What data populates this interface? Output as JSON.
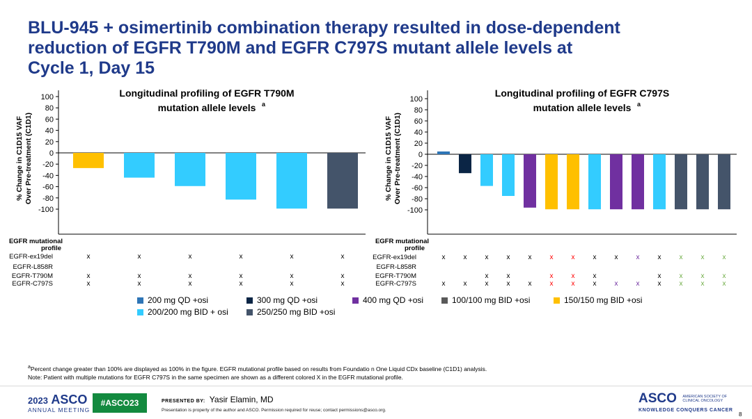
{
  "title_lines": [
    "BLU-945 + osimertinib combination therapy resulted in dose-dependent",
    "reduction of EGFR T790M and EGFR C797S mutant allele levels at",
    "Cycle 1, Day 15"
  ],
  "colors": {
    "title": "#1f3a8a",
    "d200qd": "#2e75b6",
    "d300qd": "#0b2545",
    "d400qd": "#7030a0",
    "d100bid": "#595959",
    "d150bid": "#ffc000",
    "d200bid": "#33ccff",
    "d250bid": "#44546a",
    "x_black": "#000000",
    "x_red": "#ff0000",
    "x_purple": "#7030a0",
    "x_green": "#70ad47"
  },
  "chart_data": [
    {
      "type": "bar",
      "title_line1": "Longitudinal profiling of EGFR T790M",
      "title_line2": "mutation allele levels",
      "title_sup": "a",
      "ylabel_line1": "% Change in C1D15 VAF",
      "ylabel_line2": "Over Pre-treatment (C1D1)",
      "ylim": [
        -100,
        100
      ],
      "yticks": [
        100,
        80,
        60,
        40,
        20,
        0,
        -20,
        -40,
        -60,
        -80,
        -100
      ],
      "values": [
        -27,
        -44,
        -59,
        -83,
        -99,
        -99
      ],
      "colors": [
        "#ffc000",
        "#33ccff",
        "#33ccff",
        "#33ccff",
        "#33ccff",
        "#44546a"
      ],
      "profile_header_line1": "EGFR mutational",
      "profile_header_line2": "profile",
      "profile_rows": [
        {
          "label": "EGFR-ex19del",
          "marks": [
            "x",
            "x",
            "x",
            "x",
            "x",
            "x"
          ],
          "mark_colors": [
            "#000000",
            "#000000",
            "#000000",
            "#000000",
            "#000000",
            "#000000"
          ]
        },
        {
          "label": "EGFR-L858R",
          "marks": [
            "",
            "",
            "",
            "",
            "",
            ""
          ],
          "mark_colors": [
            "#000000",
            "#000000",
            "#000000",
            "#000000",
            "#000000",
            "#000000"
          ]
        },
        {
          "label": "EGFR-T790M",
          "marks": [
            "x",
            "x",
            "x",
            "x",
            "x",
            "x"
          ],
          "mark_colors": [
            "#000000",
            "#000000",
            "#000000",
            "#000000",
            "#000000",
            "#000000"
          ]
        },
        {
          "label": "EGFR-C797S",
          "marks": [
            "x",
            "x",
            "x",
            "x",
            "x",
            "x"
          ],
          "mark_colors": [
            "#000000",
            "#000000",
            "#000000",
            "#000000",
            "#000000",
            "#000000"
          ]
        }
      ]
    },
    {
      "type": "bar",
      "title_line1": "Longitudinal profiling of EGFR C797S",
      "title_line2": "mutation allele levels",
      "title_sup": "a",
      "ylabel_line1": "% Change in C1D15 VAF",
      "ylabel_line2": "Over Pre-treatment (C1D1)",
      "ylim": [
        -100,
        100
      ],
      "yticks": [
        100,
        80,
        60,
        40,
        20,
        0,
        -20,
        -40,
        -60,
        -80,
        -100
      ],
      "values": [
        5,
        -34,
        -57,
        -75,
        -96,
        -99,
        -99,
        -99,
        -99,
        -99,
        -99,
        -99,
        -99,
        -99
      ],
      "colors": [
        "#2e75b6",
        "#0b2545",
        "#33ccff",
        "#33ccff",
        "#7030a0",
        "#ffc000",
        "#ffc000",
        "#33ccff",
        "#7030a0",
        "#7030a0",
        "#33ccff",
        "#44546a",
        "#44546a",
        "#44546a"
      ],
      "profile_header_line1": "EGFR mutational",
      "profile_header_line2": "profile",
      "profile_rows": [
        {
          "label": "EGFR-ex19del",
          "marks": [
            "x",
            "x",
            "x",
            "x",
            "x",
            "x",
            "x",
            "x",
            "x",
            "x",
            "x",
            "x",
            "x",
            "x"
          ],
          "mark_colors": [
            "#000000",
            "#000000",
            "#000000",
            "#000000",
            "#000000",
            "#ff0000",
            "#ff0000",
            "#000000",
            "#000000",
            "#7030a0",
            "#000000",
            "#70ad47",
            "#70ad47",
            "#70ad47"
          ]
        },
        {
          "label": "EGFR-L858R",
          "marks": [
            "",
            "",
            "",
            "",
            "",
            "",
            "",
            "",
            "",
            "",
            "",
            "",
            "",
            ""
          ],
          "mark_colors": [
            "#000000",
            "#000000",
            "#000000",
            "#000000",
            "#000000",
            "#000000",
            "#000000",
            "#000000",
            "#000000",
            "#000000",
            "#000000",
            "#000000",
            "#000000",
            "#000000"
          ]
        },
        {
          "label": "EGFR-T790M",
          "marks": [
            "",
            "",
            "x",
            "x",
            "",
            "x",
            "x",
            "x",
            "",
            "",
            "x",
            "x",
            "x",
            "x"
          ],
          "mark_colors": [
            "#000000",
            "#000000",
            "#000000",
            "#000000",
            "#000000",
            "#ff0000",
            "#ff0000",
            "#000000",
            "#000000",
            "#000000",
            "#000000",
            "#70ad47",
            "#70ad47",
            "#70ad47"
          ]
        },
        {
          "label": "EGFR-C797S",
          "marks": [
            "x",
            "x",
            "x",
            "x",
            "x",
            "x",
            "x",
            "x",
            "x",
            "x",
            "x",
            "x",
            "x",
            "x"
          ],
          "mark_colors": [
            "#000000",
            "#000000",
            "#000000",
            "#000000",
            "#000000",
            "#ff0000",
            "#ff0000",
            "#000000",
            "#7030a0",
            "#7030a0",
            "#000000",
            "#70ad47",
            "#70ad47",
            "#70ad47"
          ]
        }
      ]
    }
  ],
  "legend": [
    {
      "label": "200 mg QD +osi",
      "color": "#2e75b6"
    },
    {
      "label": "300 mg QD +osi",
      "color": "#0b2545"
    },
    {
      "label": "400 mg QD +osi",
      "color": "#7030a0"
    },
    {
      "label": "100/100 mg BID +osi",
      "color": "#595959"
    },
    {
      "label": "150/150 mg BID +osi",
      "color": "#ffc000"
    },
    {
      "label": "200/200 mg BID + osi",
      "color": "#33ccff"
    },
    {
      "label": "250/250 mg BID +osi",
      "color": "#44546a"
    }
  ],
  "footnote_sup": "a",
  "footnote_line1": "Percent change greater than 100% are displayed as 100% in the figure. EGFR mutational profile based on results from Foundatio n One Liquid CDx baseline (C1D1) analysis.",
  "footnote_line2": "Note: Patient with multiple mutations for EGFR C797S in the same specimen are shown as a different colored X in the EGFR mutational profile.",
  "footer": {
    "year": "2023",
    "asco": "ASCO",
    "annual": "ANNUAL MEETING",
    "hashtag": "#ASCO23",
    "presented_by": "PRESENTED BY:",
    "presenter": "Yasir Elamin, MD",
    "permission": "Presentation is property of the author and ASCO. Permission required for reuse; contact permissions@asco.org.",
    "asco_right": "ASCO",
    "society_line1": "AMERICAN SOCIETY OF",
    "society_line2": "CLINICAL ONCOLOGY",
    "tagline": "KNOWLEDGE CONQUERS CANCER",
    "page": "8"
  }
}
